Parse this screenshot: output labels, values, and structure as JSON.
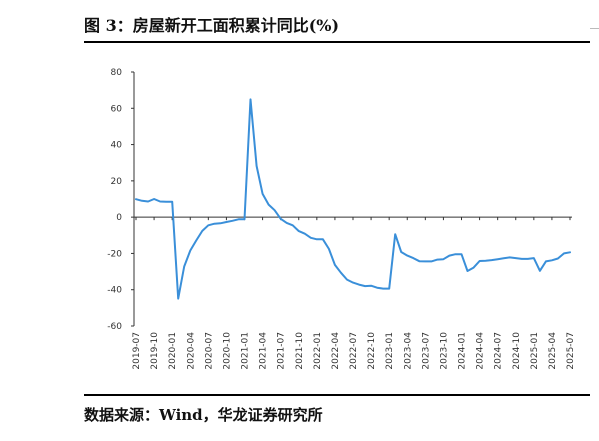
{
  "figure": {
    "title": "图 3：房屋新开工面积累计同比(%)",
    "source": "数据来源：Wind，华龙证券研究所"
  },
  "chart_data": {
    "type": "line",
    "title": "",
    "xlabel": "",
    "ylabel": "",
    "ylim": [
      -60,
      80
    ],
    "yticks": [
      80,
      60,
      40,
      20,
      0,
      -20,
      -40,
      -60
    ],
    "x_tick_labels": [
      "2019-07",
      "2019-10",
      "2020-01",
      "2020-04",
      "2020-07",
      "2020-10",
      "2021-01",
      "2021-04",
      "2021-07",
      "2021-10",
      "2022-01",
      "2022-04",
      "2022-07",
      "2022-10",
      "2023-01",
      "2023-04",
      "2023-07",
      "2023-10",
      "2024-01",
      "2024-04",
      "2024-07",
      "2024-10",
      "2025-01",
      "2025-04",
      "2025-07"
    ],
    "grid": false,
    "legend": "none",
    "line_color": "#3a8fd9",
    "series": [
      {
        "x": [
          "2019-07",
          "2019-08",
          "2019-09",
          "2019-10",
          "2019-11",
          "2019-12",
          "2020-01",
          "2020-02",
          "2020-03",
          "2020-04",
          "2020-05",
          "2020-06",
          "2020-07",
          "2020-08",
          "2020-09",
          "2020-10",
          "2020-11",
          "2020-12",
          "2021-01",
          "2021-02",
          "2021-03",
          "2021-04",
          "2021-05",
          "2021-06",
          "2021-07",
          "2021-08",
          "2021-09",
          "2021-10",
          "2021-11",
          "2021-12",
          "2022-01",
          "2022-02",
          "2022-03",
          "2022-04",
          "2022-05",
          "2022-06",
          "2022-07",
          "2022-08",
          "2022-09",
          "2022-10",
          "2022-11",
          "2022-12",
          "2023-01",
          "2023-02",
          "2023-03",
          "2023-04",
          "2023-05",
          "2023-06",
          "2023-07",
          "2023-08",
          "2023-09",
          "2023-10",
          "2023-11",
          "2023-12",
          "2024-01",
          "2024-02",
          "2024-03",
          "2024-04",
          "2024-05",
          "2024-06",
          "2024-07",
          "2024-08",
          "2024-09",
          "2024-10",
          "2024-11",
          "2024-12",
          "2025-01",
          "2025-02",
          "2025-03",
          "2025-04",
          "2025-05",
          "2025-06",
          "2025-07"
        ],
        "values": [
          9.9,
          9.0,
          8.6,
          10.0,
          8.6,
          8.5,
          8.5,
          -44.9,
          -27.2,
          -18.4,
          -12.8,
          -7.6,
          -4.5,
          -3.6,
          -3.4,
          -2.7,
          -2.0,
          -1.2,
          -1.2,
          64.9,
          28.2,
          12.8,
          6.9,
          3.8,
          -0.9,
          -3.2,
          -4.5,
          -7.7,
          -9.1,
          -11.4,
          -12.2,
          -12.2,
          -17.5,
          -26.3,
          -30.6,
          -34.4,
          -36.1,
          -37.2,
          -38.0,
          -37.8,
          -38.9,
          -39.4,
          -39.4,
          -9.4,
          -19.2,
          -21.2,
          -22.6,
          -24.3,
          -24.4,
          -24.4,
          -23.4,
          -23.2,
          -21.2,
          -20.4,
          -20.4,
          -29.7,
          -27.8,
          -24.2,
          -24.0,
          -23.7,
          -23.2,
          -22.7,
          -22.2,
          -22.6,
          -23.0,
          -23.0,
          -22.6,
          -29.6,
          -24.4,
          -23.8,
          -22.8,
          -20.0,
          -19.4
        ]
      }
    ]
  }
}
